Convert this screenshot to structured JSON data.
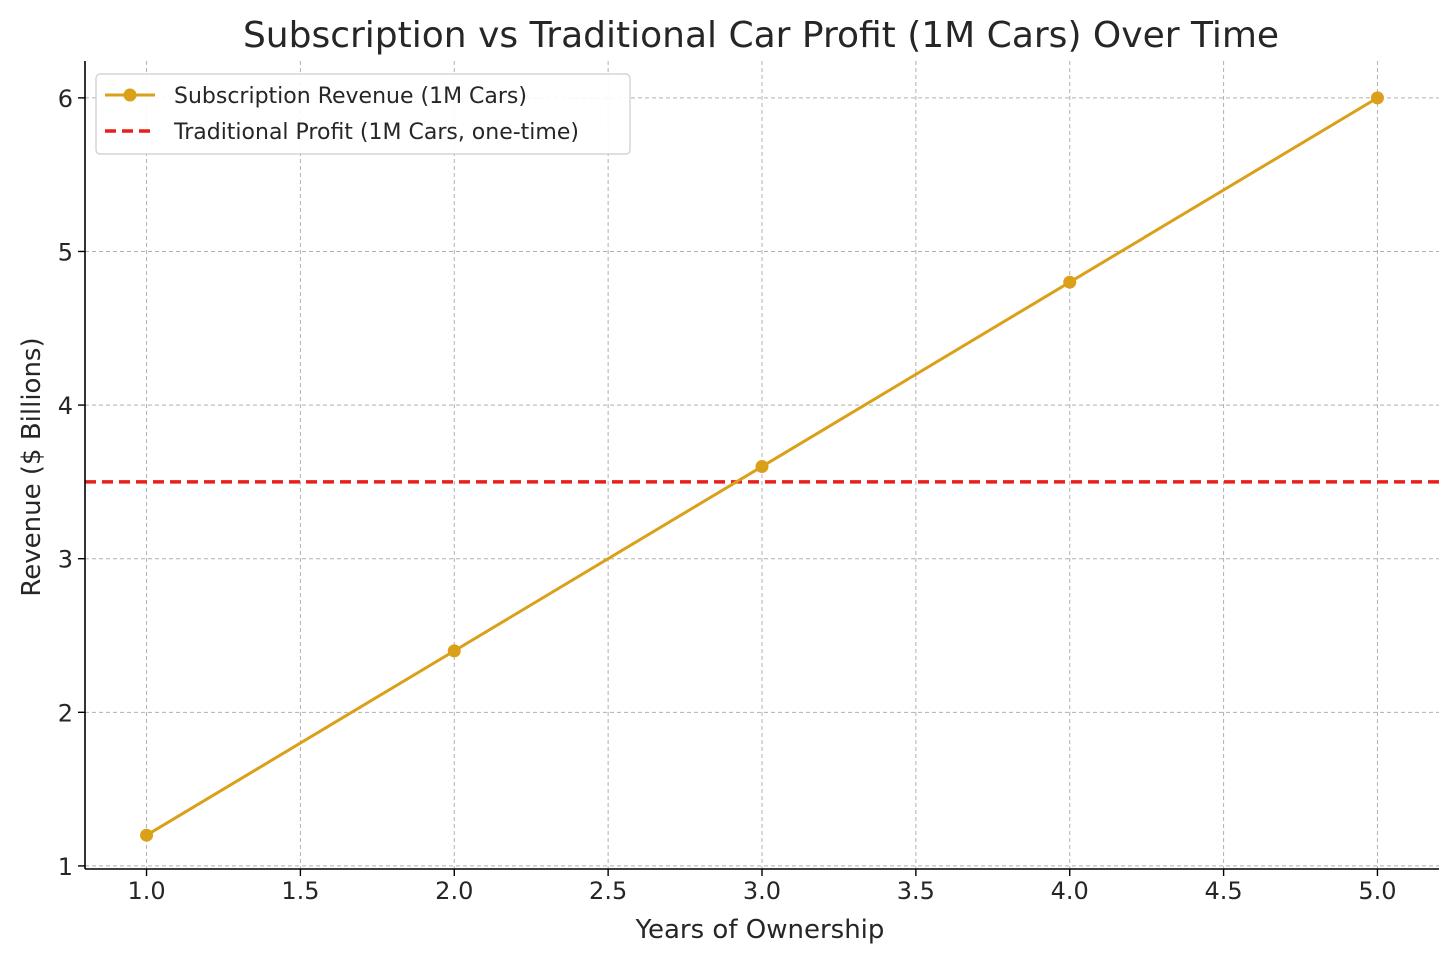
{
  "chart_data": {
    "type": "line",
    "title": "Subscription vs Traditional Car Profit (1M Cars) Over Time",
    "xlabel": "Years of Ownership",
    "ylabel": "Revenue ($ Billions)",
    "xlim": [
      0.8,
      5.2
    ],
    "ylim": [
      0.98,
      6.24
    ],
    "xticks": [
      1.0,
      1.5,
      2.0,
      2.5,
      3.0,
      3.5,
      4.0,
      4.5,
      5.0
    ],
    "xtick_labels": [
      "1.0",
      "1.5",
      "2.0",
      "2.5",
      "3.0",
      "3.5",
      "4.0",
      "4.5",
      "5.0"
    ],
    "yticks": [
      1,
      2,
      3,
      4,
      5,
      6
    ],
    "ytick_labels": [
      "1",
      "2",
      "3",
      "4",
      "5",
      "6"
    ],
    "grid": true,
    "legend_position": "top-left",
    "series": [
      {
        "name": "Subscription Revenue (1M Cars)",
        "style": "solid-line-with-circle-markers",
        "color": "#DAA01A",
        "x": [
          1,
          2,
          3,
          4,
          5
        ],
        "values": [
          1.2,
          2.4,
          3.6,
          4.8,
          6.0
        ]
      },
      {
        "name": "Traditional Profit (1M Cars, one-time)",
        "style": "dashed-horizontal-line",
        "color": "#E8201C",
        "value": 3.5
      }
    ]
  }
}
